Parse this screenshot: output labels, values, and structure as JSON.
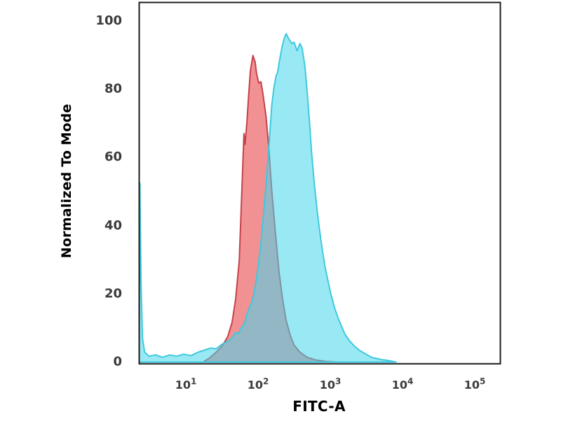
{
  "chart_data": {
    "type": "area",
    "subtype": "flow-cytometry-histogram-overlay",
    "title": "",
    "xlabel": "FITC-A",
    "ylabel": "Normalized To Mode",
    "x_scale": "log10",
    "xlim_log10": [
      0.35,
      5.35
    ],
    "ylim": [
      0,
      100
    ],
    "grid": false,
    "legend": "none",
    "y_ticks": [
      "100",
      "80",
      "60",
      "40",
      "20",
      "0"
    ],
    "x_ticks": [
      {
        "base": "10",
        "exp": "1"
      },
      {
        "base": "10",
        "exp": "2"
      },
      {
        "base": "10",
        "exp": "3"
      },
      {
        "base": "10",
        "exp": "4"
      },
      {
        "base": "10",
        "exp": "5"
      }
    ],
    "colors": {
      "axis_frame": "#1c1c1c",
      "tick_text": "#3a3a3a",
      "axis_title_text": "#000000",
      "red_fill_over_white": "#f29394",
      "cyan_fill_over_white": "#99e9f4",
      "overlap_fill": "#96b4c2",
      "background": "#ffffff"
    },
    "series": [
      {
        "name": "red-histogram",
        "fill_color": "rgba(230,45,50,0.52)",
        "stroke_color": "#c4424a",
        "stroke_width": 2,
        "peak": {
          "log10x": 1.93,
          "pct": 90
        },
        "points_log10x_pct": [
          [
            1.24,
            0
          ],
          [
            1.33,
            1.2
          ],
          [
            1.42,
            2.9
          ],
          [
            1.5,
            4.6
          ],
          [
            1.58,
            7.4
          ],
          [
            1.64,
            11.6
          ],
          [
            1.69,
            18.4
          ],
          [
            1.74,
            29.8
          ],
          [
            1.78,
            52.5
          ],
          [
            1.805,
            67.0
          ],
          [
            1.82,
            63.8
          ],
          [
            1.845,
            70.0
          ],
          [
            1.87,
            78.3
          ],
          [
            1.895,
            85.5
          ],
          [
            1.93,
            89.9
          ],
          [
            1.96,
            88.0
          ],
          [
            1.98,
            84.5
          ],
          [
            2.01,
            81.8
          ],
          [
            2.04,
            82.2
          ],
          [
            2.07,
            78.3
          ],
          [
            2.11,
            72.1
          ],
          [
            2.15,
            62.8
          ],
          [
            2.19,
            50.4
          ],
          [
            2.24,
            38.0
          ],
          [
            2.29,
            26.7
          ],
          [
            2.34,
            18.4
          ],
          [
            2.39,
            12.2
          ],
          [
            2.45,
            7.6
          ],
          [
            2.5,
            5.0
          ],
          [
            2.58,
            2.9
          ],
          [
            2.68,
            1.4
          ],
          [
            2.8,
            0.6
          ],
          [
            2.94,
            0.2
          ],
          [
            3.09,
            0
          ]
        ]
      },
      {
        "name": "cyan-histogram",
        "fill_color": "rgba(70,215,235,0.55)",
        "stroke_color": "#3ec9dd",
        "stroke_width": 2,
        "peak": {
          "log10x": 2.39,
          "pct": 96.3
        },
        "points_log10x_pct": [
          [
            0.355,
            0
          ],
          [
            0.365,
            52.5
          ],
          [
            0.38,
            23.6
          ],
          [
            0.4,
            7.0
          ],
          [
            0.43,
            2.9
          ],
          [
            0.49,
            1.7
          ],
          [
            0.58,
            2.1
          ],
          [
            0.68,
            1.4
          ],
          [
            0.78,
            2.1
          ],
          [
            0.87,
            1.7
          ],
          [
            0.97,
            2.3
          ],
          [
            1.07,
            1.9
          ],
          [
            1.17,
            2.9
          ],
          [
            1.26,
            3.5
          ],
          [
            1.34,
            4.1
          ],
          [
            1.42,
            3.9
          ],
          [
            1.5,
            5.2
          ],
          [
            1.57,
            6.0
          ],
          [
            1.63,
            6.8
          ],
          [
            1.69,
            8.7
          ],
          [
            1.73,
            8.3
          ],
          [
            1.77,
            10.1
          ],
          [
            1.81,
            11.2
          ],
          [
            1.84,
            13.6
          ],
          [
            1.88,
            15.9
          ],
          [
            1.92,
            17.8
          ],
          [
            1.96,
            21.9
          ],
          [
            2.0,
            27.7
          ],
          [
            2.04,
            34.9
          ],
          [
            2.08,
            44.2
          ],
          [
            2.12,
            54.5
          ],
          [
            2.16,
            65.9
          ],
          [
            2.19,
            75.2
          ],
          [
            2.22,
            80.4
          ],
          [
            2.25,
            83.9
          ],
          [
            2.27,
            84.9
          ],
          [
            2.3,
            88.6
          ],
          [
            2.33,
            92.1
          ],
          [
            2.36,
            94.8
          ],
          [
            2.39,
            96.3
          ],
          [
            2.43,
            94.6
          ],
          [
            2.47,
            93.4
          ],
          [
            2.5,
            93.8
          ],
          [
            2.54,
            91.3
          ],
          [
            2.58,
            93.4
          ],
          [
            2.61,
            92.1
          ],
          [
            2.65,
            86.6
          ],
          [
            2.68,
            79.3
          ],
          [
            2.71,
            71.1
          ],
          [
            2.74,
            61.8
          ],
          [
            2.78,
            52.1
          ],
          [
            2.82,
            44.2
          ],
          [
            2.85,
            39.0
          ],
          [
            2.89,
            32.9
          ],
          [
            2.93,
            27.7
          ],
          [
            2.97,
            23.6
          ],
          [
            3.01,
            19.8
          ],
          [
            3.06,
            15.9
          ],
          [
            3.11,
            12.8
          ],
          [
            3.16,
            10.3
          ],
          [
            3.2,
            8.3
          ],
          [
            3.26,
            6.4
          ],
          [
            3.33,
            4.8
          ],
          [
            3.4,
            3.5
          ],
          [
            3.48,
            2.5
          ],
          [
            3.57,
            1.4
          ],
          [
            3.69,
            0.8
          ],
          [
            3.82,
            0.4
          ],
          [
            3.91,
            0
          ]
        ]
      }
    ]
  }
}
